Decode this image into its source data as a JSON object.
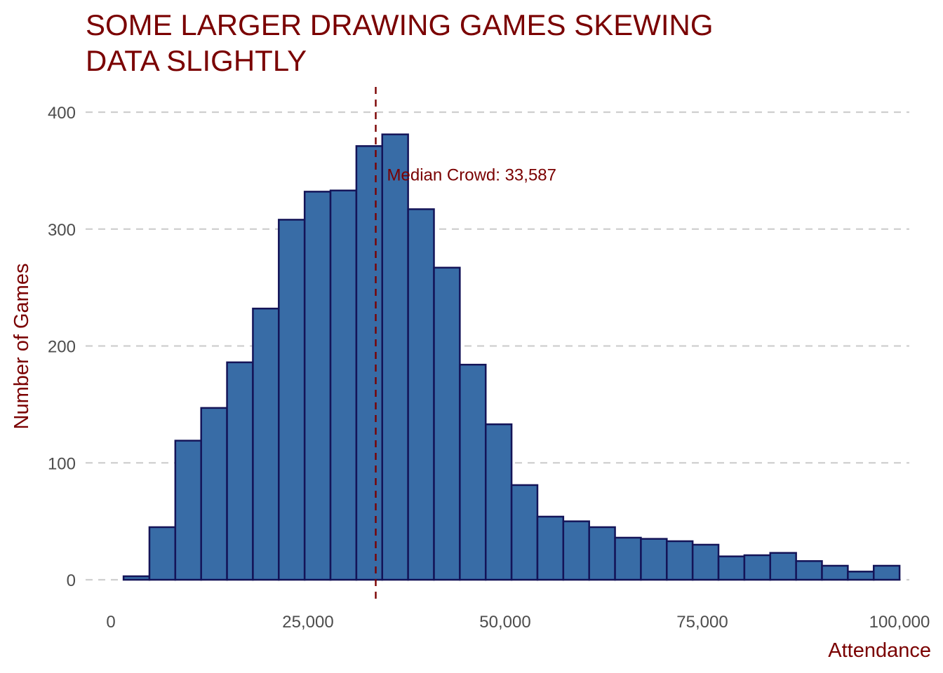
{
  "chart_data": {
    "type": "bar",
    "title_lines": [
      "SOME LARGER DRAWING GAMES SKEWING",
      "DATA SLIGHTLY"
    ],
    "xlabel": "Attendance",
    "ylabel": "Number of Games",
    "xlim": [
      0,
      100000
    ],
    "ylim": [
      0,
      400
    ],
    "x_ticks": [
      0,
      25000,
      50000,
      75000,
      100000
    ],
    "x_tick_labels": [
      "0",
      "25,000",
      "50,000",
      "75,000",
      "100,000"
    ],
    "y_ticks": [
      0,
      100,
      200,
      300,
      400
    ],
    "y_tick_labels": [
      "0",
      "100",
      "200",
      "300",
      "400"
    ],
    "grid": "horizontal dashed",
    "bin_width": 3280,
    "bin_centers": [
      3250,
      6530,
      9810,
      13090,
      16370,
      19650,
      22930,
      26210,
      29490,
      32770,
      36050,
      39330,
      42610,
      45890,
      49170,
      52450,
      55730,
      59010,
      62290,
      65570,
      68850,
      72130,
      75410,
      78690,
      81970,
      85250,
      88530,
      91810,
      95090,
      98370
    ],
    "values": [
      3,
      45,
      119,
      147,
      186,
      232,
      308,
      332,
      333,
      371,
      381,
      317,
      267,
      184,
      133,
      81,
      54,
      50,
      45,
      36,
      35,
      33,
      30,
      20,
      21,
      23,
      16,
      12,
      7,
      12
    ],
    "median": 33587,
    "median_label": "Median Crowd: 33,587",
    "colors": {
      "bar_fill": "#386ca6",
      "bar_stroke": "#141458",
      "accent": "#7a0000",
      "grid": "#cfcfcf",
      "tick_text": "#4d4d4d"
    }
  }
}
